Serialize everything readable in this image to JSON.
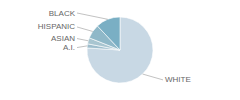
{
  "chart_data": {
    "type": "pie",
    "categories": [
      "WHITE",
      "A.I.",
      "ASIAN",
      "HISPANIC",
      "BLACK"
    ],
    "values": [
      76,
      2,
      3,
      7,
      12
    ],
    "colors": [
      "#c8d8e4",
      "#9dbdcc",
      "#a8c5d0",
      "#8fb8c8",
      "#7aafc4"
    ]
  }
}
